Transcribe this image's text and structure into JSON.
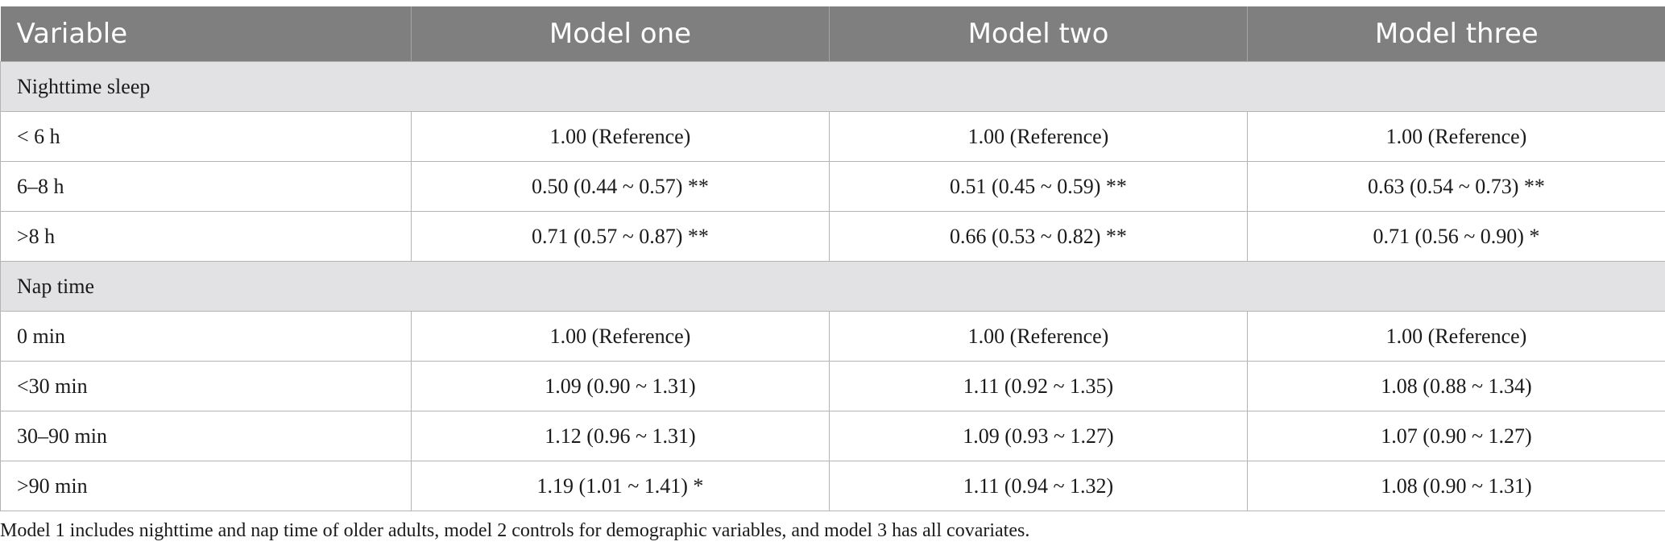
{
  "header": {
    "variable": "Variable",
    "model_one": "Model one",
    "model_two": "Model two",
    "model_three": "Model three"
  },
  "sections": [
    {
      "title": "Nighttime sleep",
      "rows": [
        {
          "label": "< 6 h",
          "m1": "1.00 (Reference)",
          "m2": "1.00 (Reference)",
          "m3": "1.00 (Reference)"
        },
        {
          "label": "6–8 h",
          "m1": "0.50 (0.44 ~ 0.57) **",
          "m2": "0.51 (0.45 ~ 0.59) **",
          "m3": "0.63 (0.54 ~ 0.73) **"
        },
        {
          "label": ">8 h",
          "m1": "0.71 (0.57 ~ 0.87) **",
          "m2": "0.66 (0.53 ~ 0.82) **",
          "m3": "0.71 (0.56 ~ 0.90) *"
        }
      ]
    },
    {
      "title": "Nap time",
      "rows": [
        {
          "label": "0 min",
          "m1": "1.00 (Reference)",
          "m2": "1.00 (Reference)",
          "m3": "1.00 (Reference)"
        },
        {
          "label": "<30 min",
          "m1": "1.09 (0.90 ~ 1.31)",
          "m2": "1.11 (0.92 ~ 1.35)",
          "m3": "1.08 (0.88 ~ 1.34)"
        },
        {
          "label": "30–90 min",
          "m1": "1.12 (0.96 ~ 1.31)",
          "m2": "1.09 (0.93 ~ 1.27)",
          "m3": "1.07 (0.90 ~ 1.27)"
        },
        {
          "label": ">90 min",
          "m1": "1.19 (1.01 ~ 1.41) *",
          "m2": "1.11 (0.94 ~ 1.32)",
          "m3": "1.08 (0.90 ~ 1.31)"
        }
      ]
    }
  ],
  "footnote": "Model 1 includes nighttime and nap time of older adults, model 2 controls for demographic variables, and model 3 has all covariates.",
  "colors": {
    "header_bg": "#7f7f7f",
    "header_text": "#ffffff",
    "section_bg": "#e2e1e3",
    "border": "#b4b4b4"
  }
}
